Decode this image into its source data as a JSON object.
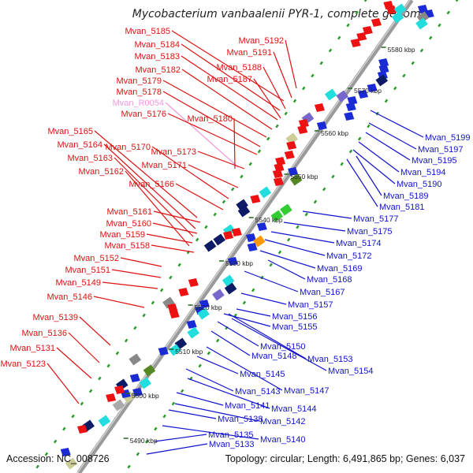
{
  "title": "Mycobacterium vanbaalenii PYR-1, complete genome",
  "accession": "Accession: NC_008726",
  "summary": "Topology: circular; Length: 6,491,865 bp; Genes: 6,037",
  "colors": {
    "left_label": "#dd1111",
    "right_label": "#1111cc",
    "rna_label": "#ee99dd",
    "backbone": "#999999",
    "tick_green": "#2a9a2a",
    "kbp_tick": "#226622"
  },
  "kbp_labels": [
    "5490 kbp",
    "5500 kbp",
    "5510 kbp",
    "5520 kbp",
    "5530 kbp",
    "5540 kbp",
    "5550 kbp",
    "5560 kbp",
    "5570 kbp",
    "5580 kbp"
  ],
  "left_labels": [
    "Mvan_5185",
    "Mvan_5184",
    "Mvan_5183",
    "Mvan_5182",
    "Mvan_5179",
    "Mvan_5178",
    "Mvan_R0054",
    "Mvan_5176",
    "Mvan_5192",
    "Mvan_5191",
    "Mvan_5188",
    "Mvan_5187",
    "Mvan_5180",
    "Mvan_5165",
    "Mvan_5164",
    "Mvan_5170",
    "Mvan_5163",
    "Mvan_5173",
    "Mvan_5171",
    "Mvan_5162",
    "Mvan_5166",
    "Mvan_5161",
    "Mvan_5160",
    "Mvan_5159",
    "Mvan_5158",
    "Mvan_5152",
    "Mvan_5151",
    "Mvan_5149",
    "Mvan_5146",
    "Mvan_5139",
    "Mvan_5136",
    "Mvan_5131",
    "Mvan_5123"
  ],
  "right_labels": [
    "Mvan_5199",
    "Mvan_5197",
    "Mvan_5195",
    "Mvan_5194",
    "Mvan_5190",
    "Mvan_5189",
    "Mvan_5181",
    "Mvan_5177",
    "Mvan_5175",
    "Mvan_5174",
    "Mvan_5172",
    "Mvan_5169",
    "Mvan_5168",
    "Mvan_5167",
    "Mvan_5157",
    "Mvan_5156",
    "Mvan_5155",
    "Mvan_5150",
    "Mvan_5148",
    "Mvan_5153",
    "Mvan_5154",
    "Mvan_5145",
    "Mvan_5147",
    "Mvan_5143",
    "Mvan_5144",
    "Mvan_5141",
    "Mvan_5142",
    "Mvan_5138",
    "Mvan_5140",
    "Mvan_5135",
    "Mvan_5133"
  ]
}
